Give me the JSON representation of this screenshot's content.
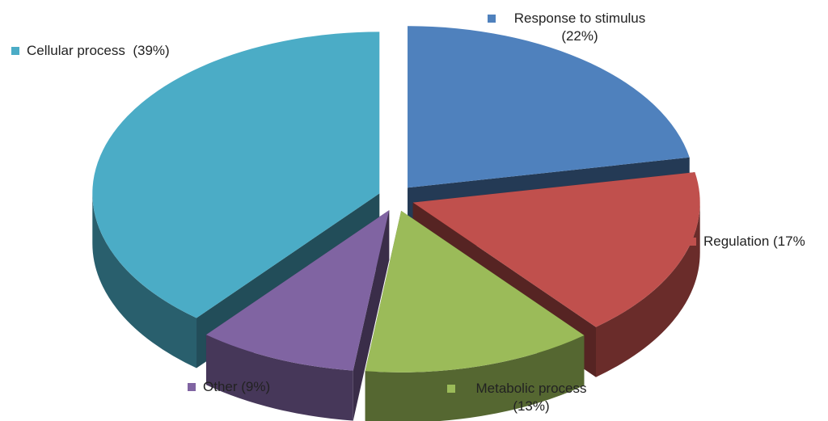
{
  "chart_data": {
    "type": "pie",
    "title": "",
    "three_d": true,
    "exploded": true,
    "legend_placement": "labels beside slices",
    "slices": [
      {
        "label": "Response to stimulus",
        "pct_text": "(22%)",
        "value": 22,
        "color": "#4f81bd"
      },
      {
        "label": "Regulation",
        "pct_text": "(17%",
        "value": 17,
        "color": "#c0504d"
      },
      {
        "label": "Metabolic process",
        "pct_text": "(13%)",
        "value": 13,
        "color": "#9bbb59"
      },
      {
        "label": "Other",
        "pct_text": "(9%)",
        "value": 9,
        "color": "#8064a2"
      },
      {
        "label": "Cellular process",
        "pct_text": "(39%)",
        "value": 39,
        "color": "#4bacc6"
      }
    ]
  }
}
